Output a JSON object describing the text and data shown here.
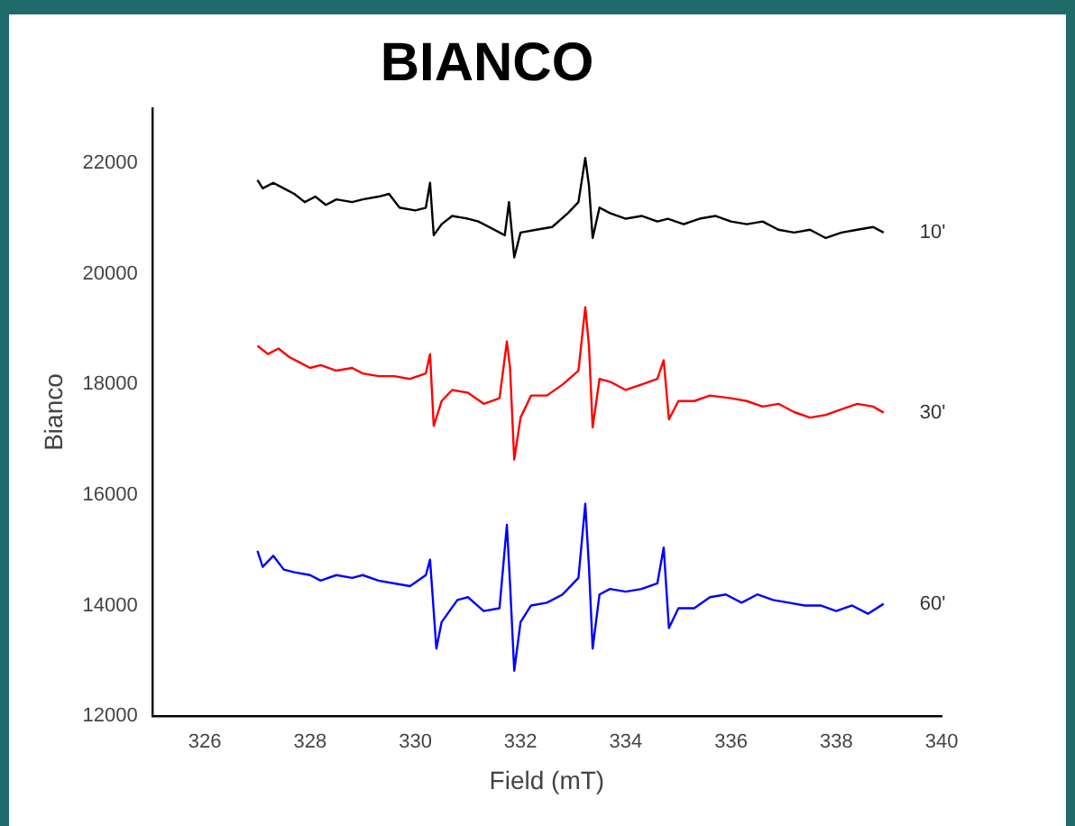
{
  "chart_data": {
    "type": "line",
    "title": "BIANCO",
    "xlabel": "Field (mT)",
    "ylabel": "Bianco",
    "xlim": [
      325,
      340
    ],
    "xticks": [
      326,
      328,
      330,
      332,
      334,
      336,
      338,
      340
    ],
    "ylim": [
      12000,
      23000
    ],
    "yticks": [
      12000,
      14000,
      16000,
      18000,
      20000,
      22000
    ],
    "grid": false,
    "legend": false,
    "marker": "none",
    "line_style": "solid",
    "series": [
      {
        "name": "10'",
        "color": "#000000",
        "x": [
          327.0,
          327.1,
          327.3,
          327.5,
          327.7,
          327.9,
          328.1,
          328.3,
          328.5,
          328.8,
          329.0,
          329.3,
          329.5,
          329.7,
          330.0,
          330.2,
          330.28,
          330.35,
          330.5,
          330.7,
          331.0,
          331.2,
          331.5,
          331.7,
          331.78,
          331.88,
          332.0,
          332.3,
          332.6,
          332.9,
          333.1,
          333.23,
          333.3,
          333.37,
          333.5,
          333.7,
          334.0,
          334.3,
          334.6,
          334.8,
          335.1,
          335.4,
          335.7,
          336.0,
          336.3,
          336.6,
          336.9,
          337.2,
          337.5,
          337.8,
          338.1,
          338.4,
          338.7,
          338.9
        ],
        "values": [
          21700,
          21550,
          21650,
          21550,
          21450,
          21300,
          21400,
          21250,
          21350,
          21300,
          21350,
          21400,
          21450,
          21200,
          21150,
          21200,
          21650,
          20700,
          20900,
          21050,
          21000,
          20950,
          20800,
          20700,
          21300,
          20300,
          20750,
          20800,
          20850,
          21100,
          21300,
          22100,
          21600,
          20650,
          21200,
          21100,
          21000,
          21050,
          20950,
          21000,
          20900,
          21000,
          21050,
          20950,
          20900,
          20950,
          20800,
          20750,
          20800,
          20650,
          20750,
          20800,
          20850,
          20750
        ]
      },
      {
        "name": "30'",
        "color": "#ff0000",
        "x": [
          327.0,
          327.2,
          327.4,
          327.6,
          327.8,
          328.0,
          328.2,
          328.5,
          328.8,
          329.0,
          329.3,
          329.6,
          329.9,
          330.2,
          330.28,
          330.35,
          330.5,
          330.7,
          331.0,
          331.3,
          331.6,
          331.74,
          331.8,
          331.88,
          332.0,
          332.2,
          332.5,
          332.8,
          333.1,
          333.23,
          333.3,
          333.37,
          333.5,
          333.7,
          334.0,
          334.3,
          334.6,
          334.72,
          334.82,
          335.0,
          335.3,
          335.6,
          336.0,
          336.3,
          336.6,
          336.9,
          337.2,
          337.5,
          337.8,
          338.1,
          338.4,
          338.7,
          338.9
        ],
        "values": [
          18700,
          18550,
          18650,
          18500,
          18400,
          18300,
          18350,
          18250,
          18300,
          18200,
          18150,
          18150,
          18100,
          18200,
          18550,
          17250,
          17700,
          17900,
          17850,
          17650,
          17750,
          18780,
          18300,
          16640,
          17400,
          17800,
          17800,
          18000,
          18250,
          19400,
          18700,
          17220,
          18100,
          18050,
          17900,
          18000,
          18100,
          18440,
          17370,
          17700,
          17700,
          17800,
          17750,
          17700,
          17600,
          17650,
          17500,
          17400,
          17450,
          17550,
          17650,
          17600,
          17490
        ]
      },
      {
        "name": "60'",
        "color": "#0000ff",
        "x": [
          327.0,
          327.1,
          327.3,
          327.5,
          327.7,
          328.0,
          328.2,
          328.5,
          328.8,
          329.0,
          329.3,
          329.6,
          329.9,
          330.2,
          330.28,
          330.4,
          330.5,
          330.8,
          331.0,
          331.3,
          331.6,
          331.74,
          331.8,
          331.88,
          332.0,
          332.2,
          332.5,
          332.8,
          333.1,
          333.23,
          333.3,
          333.37,
          333.5,
          333.7,
          334.0,
          334.3,
          334.6,
          334.72,
          334.82,
          335.0,
          335.3,
          335.6,
          335.9,
          336.2,
          336.5,
          336.8,
          337.1,
          337.4,
          337.7,
          338.0,
          338.3,
          338.6,
          338.9
        ],
        "values": [
          14990,
          14700,
          14900,
          14650,
          14600,
          14550,
          14450,
          14550,
          14500,
          14550,
          14450,
          14400,
          14350,
          14550,
          14830,
          13220,
          13700,
          14100,
          14150,
          13900,
          13950,
          15460,
          14400,
          12820,
          13700,
          14000,
          14050,
          14200,
          14500,
          15840,
          14700,
          13220,
          14200,
          14300,
          14250,
          14300,
          14400,
          15050,
          13590,
          13950,
          13950,
          14150,
          14200,
          14050,
          14200,
          14100,
          14050,
          14000,
          14000,
          13900,
          14000,
          13850,
          14030
        ]
      }
    ]
  }
}
